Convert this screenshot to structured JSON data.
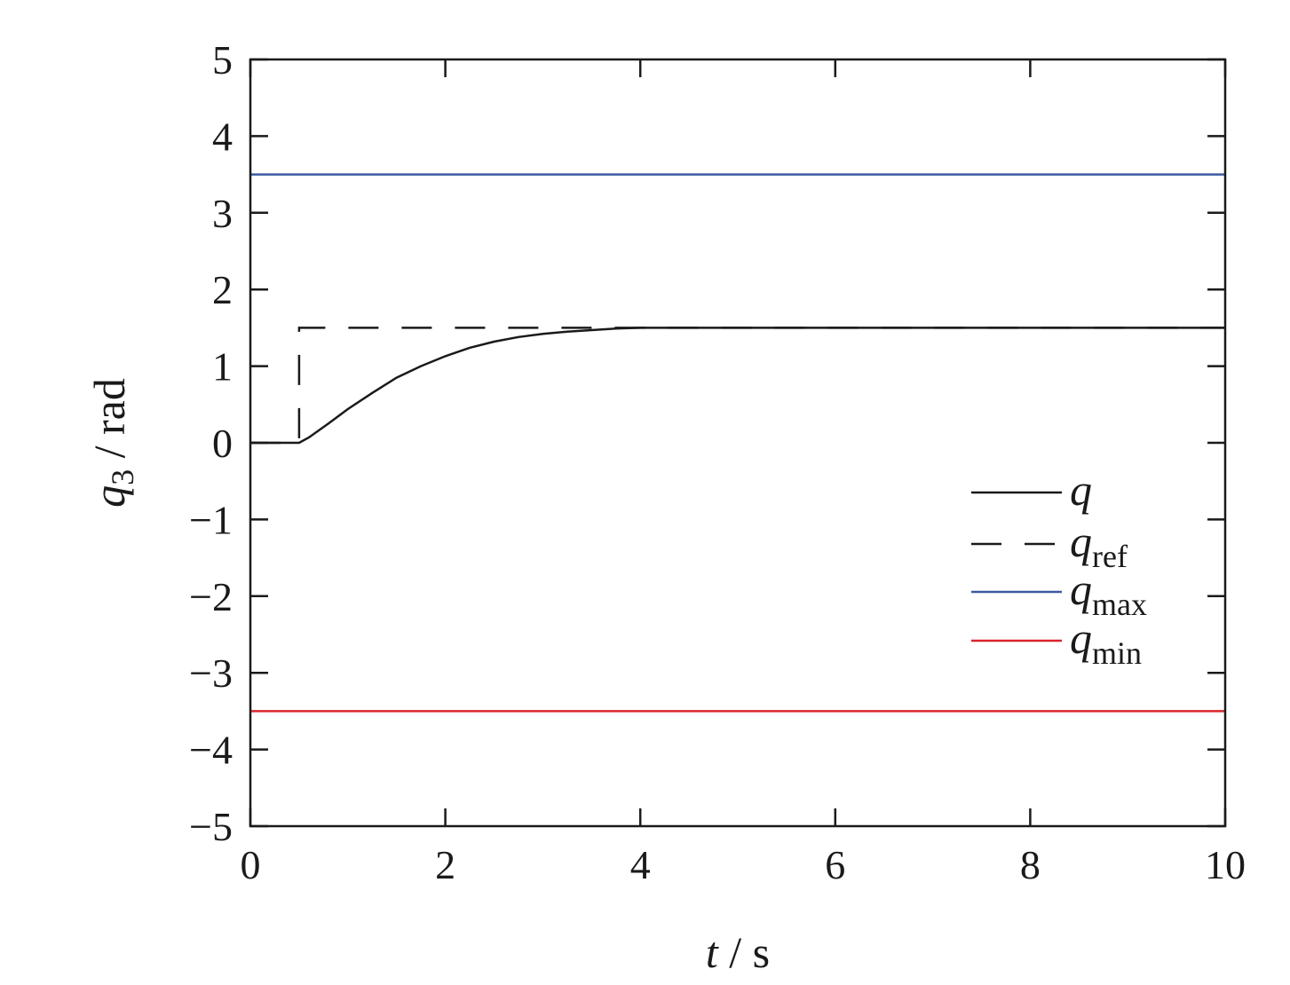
{
  "chart_data": {
    "type": "line",
    "title": "",
    "xlabel": {
      "var": "t",
      "unit": " / s"
    },
    "ylabel": {
      "var": "q",
      "sub": "3",
      "unit": " / rad"
    },
    "xlim": [
      0,
      10
    ],
    "ylim": [
      -5,
      5
    ],
    "xticks": [
      0,
      2,
      4,
      6,
      8,
      10
    ],
    "yticks": [
      5,
      4,
      3,
      2,
      1,
      0,
      -1,
      -2,
      -3,
      -4,
      -5
    ],
    "xtick_labels": [
      "0",
      "2",
      "4",
      "6",
      "8",
      "10"
    ],
    "ytick_labels": [
      "5",
      "4",
      "3",
      "2",
      "1",
      "0",
      "−1",
      "−2",
      "−3",
      "−4",
      "−5"
    ],
    "grid": false,
    "legend_position": "right, below center",
    "series": [
      {
        "name": "q",
        "legend_var": "q",
        "legend_sub": "",
        "color": "#1a1a1a",
        "style": "solid",
        "x": [
          0,
          0.5,
          0.6,
          0.8,
          1.0,
          1.25,
          1.5,
          1.75,
          2.0,
          2.25,
          2.5,
          2.75,
          3.0,
          3.25,
          3.5,
          3.75,
          4.0,
          4.25,
          4.5,
          5.0,
          6.0,
          7.0,
          8.0,
          9.0,
          10.0
        ],
        "y": [
          0,
          0,
          0.07,
          0.25,
          0.44,
          0.65,
          0.85,
          1.0,
          1.13,
          1.24,
          1.32,
          1.38,
          1.42,
          1.45,
          1.47,
          1.49,
          1.5,
          1.5,
          1.5,
          1.5,
          1.5,
          1.5,
          1.5,
          1.5,
          1.5
        ]
      },
      {
        "name": "q_ref",
        "legend_var": "q",
        "legend_sub": "ref",
        "color": "#1a1a1a",
        "style": "dashed",
        "x": [
          0,
          0.5,
          0.5,
          10
        ],
        "y": [
          0,
          0,
          1.5,
          1.5
        ]
      },
      {
        "name": "q_max",
        "legend_var": "q",
        "legend_sub": "max",
        "color": "#3b5aa0",
        "style": "solid",
        "x": [
          0,
          10
        ],
        "y": [
          3.5,
          3.5
        ]
      },
      {
        "name": "q_min",
        "legend_var": "q",
        "legend_sub": "min",
        "color": "#d9252c",
        "style": "solid",
        "x": [
          0,
          10
        ],
        "y": [
          -3.5,
          -3.5
        ]
      }
    ]
  }
}
